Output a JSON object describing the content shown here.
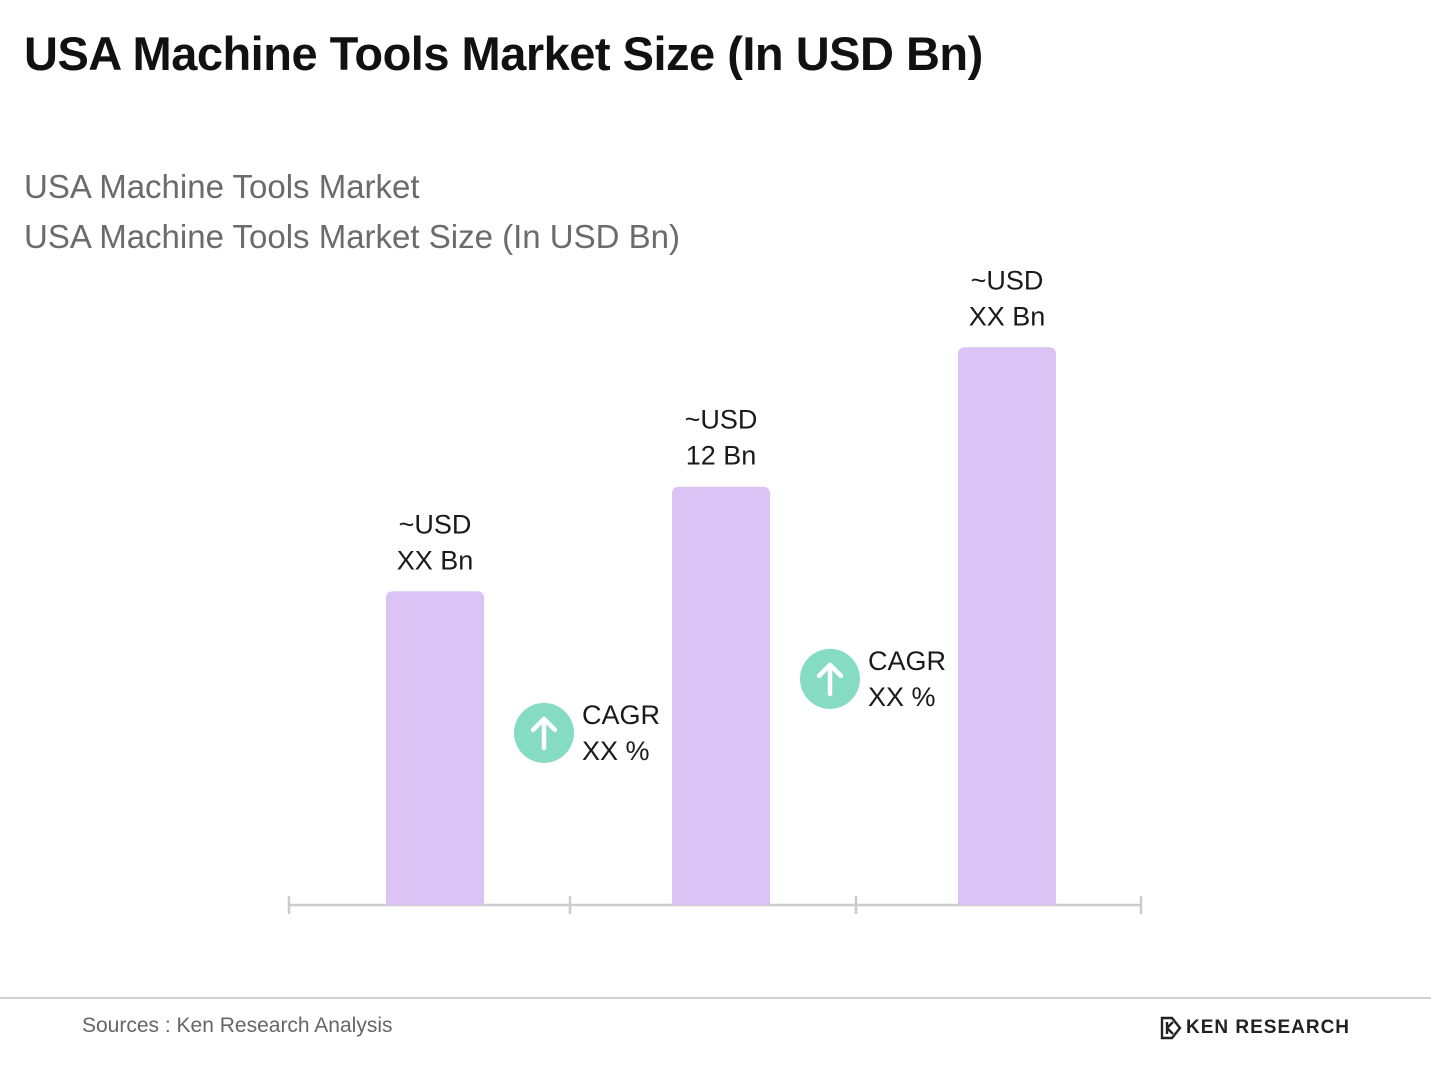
{
  "title": "USA Machine Tools Market Size (In USD Bn)",
  "subtitles": [
    "USA Machine Tools Market",
    "USA Machine Tools Market Size (In USD Bn)"
  ],
  "colors": {
    "bar": "#dcc3f5",
    "cagr_badge": "#86dcc3",
    "axis": "#cccccc"
  },
  "icons": {
    "cagr": "arrow-up-icon",
    "brand": "ken-research-logo"
  },
  "chart_data": {
    "type": "bar",
    "values": [
      9,
      12,
      16
    ],
    "bar_labels": [
      [
        "~USD",
        "XX Bn"
      ],
      [
        "~USD",
        "12 Bn"
      ],
      [
        "~USD",
        "XX Bn"
      ]
    ],
    "cagr": [
      [
        "CAGR",
        "XX %"
      ],
      [
        "CAGR",
        "XX %"
      ]
    ],
    "ylim": [
      0,
      17.5
    ]
  },
  "footer": {
    "source": "Sources : Ken Research Analysis",
    "brand": "KEN RESEARCH"
  }
}
